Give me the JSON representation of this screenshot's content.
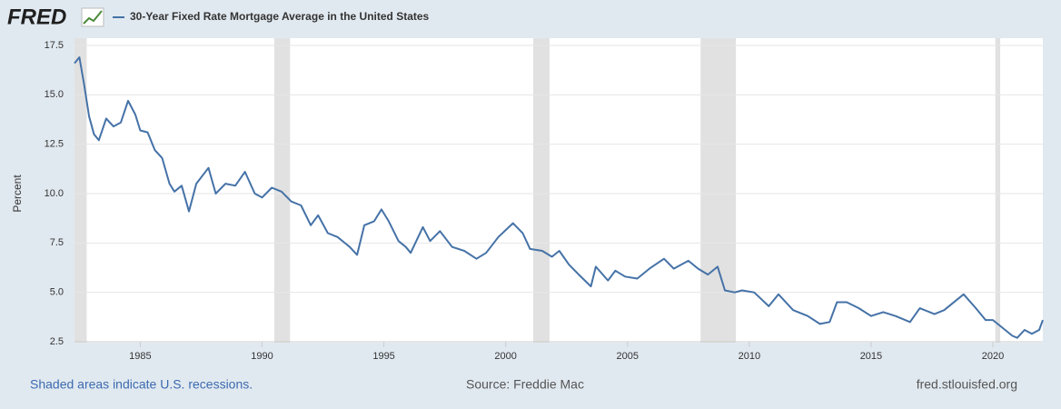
{
  "brand": "FRED",
  "chart_data": {
    "type": "line",
    "ylabel": "Percent",
    "series": [
      {
        "name": "30-Year Fixed Rate Mortgage Average in the United States",
        "color": "#4572a7",
        "x": [
          1982.3,
          1982.5,
          1982.7,
          1982.9,
          1983.1,
          1983.3,
          1983.6,
          1983.9,
          1984.2,
          1984.5,
          1984.8,
          1985.0,
          1985.3,
          1985.6,
          1985.9,
          1986.2,
          1986.4,
          1986.7,
          1987.0,
          1987.3,
          1987.8,
          1988.1,
          1988.5,
          1988.9,
          1989.3,
          1989.7,
          1990.0,
          1990.4,
          1990.8,
          1991.2,
          1991.6,
          1992.0,
          1992.3,
          1992.7,
          1993.1,
          1993.6,
          1993.9,
          1994.2,
          1994.6,
          1994.9,
          1995.2,
          1995.6,
          1995.9,
          1996.1,
          1996.6,
          1996.9,
          1997.3,
          1997.8,
          1998.3,
          1998.8,
          1999.2,
          1999.7,
          2000.3,
          2000.7,
          2001.0,
          2001.5,
          2001.9,
          2002.2,
          2002.6,
          2003.0,
          2003.5,
          2003.7,
          2004.2,
          2004.5,
          2004.9,
          2005.4,
          2005.9,
          2006.5,
          2006.9,
          2007.5,
          2007.9,
          2008.3,
          2008.7,
          2009.0,
          2009.4,
          2009.7,
          2010.2,
          2010.8,
          2011.2,
          2011.8,
          2012.4,
          2012.9,
          2013.3,
          2013.6,
          2014.0,
          2014.5,
          2015.0,
          2015.5,
          2016.0,
          2016.6,
          2017.0,
          2017.6,
          2018.0,
          2018.8,
          2019.3,
          2019.7,
          2020.0,
          2020.3,
          2020.8,
          2021.0,
          2021.3,
          2021.6,
          2021.9,
          2022.05
        ],
        "values": [
          16.6,
          16.9,
          15.5,
          13.9,
          13.0,
          12.7,
          13.8,
          13.4,
          13.6,
          14.7,
          14.0,
          13.2,
          13.1,
          12.2,
          11.8,
          10.5,
          10.1,
          10.4,
          9.1,
          10.5,
          11.3,
          10.0,
          10.5,
          10.4,
          11.1,
          10.0,
          9.8,
          10.3,
          10.1,
          9.6,
          9.4,
          8.4,
          8.9,
          8.0,
          7.8,
          7.3,
          6.9,
          8.4,
          8.6,
          9.2,
          8.6,
          7.6,
          7.3,
          7.0,
          8.3,
          7.6,
          8.1,
          7.3,
          7.1,
          6.7,
          7.0,
          7.8,
          8.5,
          8.0,
          7.2,
          7.1,
          6.8,
          7.1,
          6.4,
          5.9,
          5.3,
          6.3,
          5.6,
          6.1,
          5.8,
          5.7,
          6.2,
          6.7,
          6.2,
          6.6,
          6.2,
          5.9,
          6.3,
          5.1,
          5.0,
          5.1,
          5.0,
          4.3,
          4.9,
          4.1,
          3.8,
          3.4,
          3.5,
          4.5,
          4.5,
          4.2,
          3.8,
          4.0,
          3.8,
          3.5,
          4.2,
          3.9,
          4.1,
          4.9,
          4.2,
          3.6,
          3.6,
          3.3,
          2.8,
          2.7,
          3.1,
          2.9,
          3.1,
          3.6
        ]
      }
    ],
    "recessions": [
      [
        1982.3,
        1982.8
      ],
      [
        1990.5,
        1991.15
      ],
      [
        2001.13,
        2001.8
      ],
      [
        2008.0,
        2009.45
      ],
      [
        2020.1,
        2020.3
      ]
    ],
    "recession_color": "#e1e1e1",
    "xlim": [
      1982.3,
      2022.05
    ],
    "xticks": [
      1985,
      1990,
      1995,
      2000,
      2005,
      2010,
      2015,
      2020
    ],
    "ylim": [
      2.5,
      17.5
    ],
    "yticks": [
      2.5,
      {
        "value": 5,
        "label": "5.0"
      },
      7.5,
      {
        "value": 10,
        "label": "10.0"
      },
      12.5,
      {
        "value": 15,
        "label": "15.0"
      },
      17.5
    ],
    "grid": true
  },
  "footer": {
    "left": "Shaded areas indicate U.S. recessions.",
    "center": "Source: Freddie Mac",
    "right": "fred.stlouisfed.org"
  }
}
